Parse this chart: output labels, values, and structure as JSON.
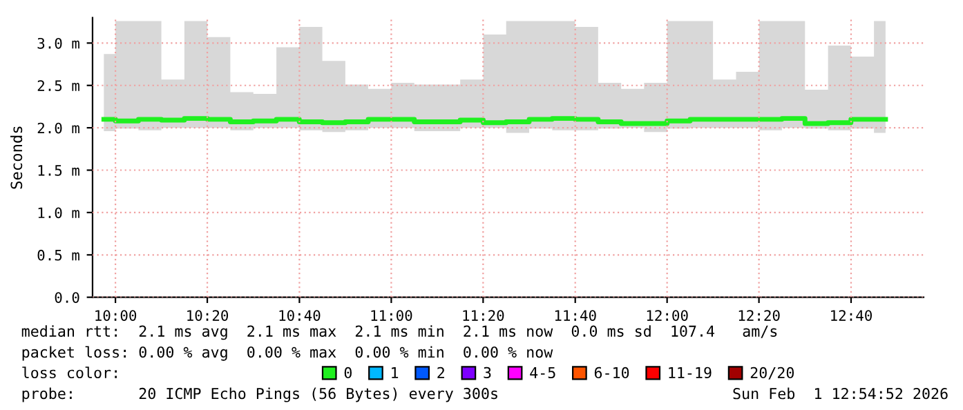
{
  "chart_data": {
    "type": "step",
    "ylabel": "Seconds",
    "x": [
      9.958,
      10.042,
      10.125,
      10.208,
      10.292,
      10.375,
      10.458,
      10.542,
      10.625,
      10.708,
      10.792,
      10.875,
      10.958,
      11.042,
      11.125,
      11.208,
      11.292,
      11.375,
      11.458,
      11.542,
      11.625,
      11.708,
      11.792,
      11.875,
      11.958,
      12.042,
      12.125,
      12.208,
      12.292,
      12.375,
      12.458,
      12.542,
      12.625,
      12.708,
      12.792
    ],
    "series": [
      {
        "name": "0",
        "color": "#20f020",
        "values": [
          2.1,
          2.08,
          2.1,
          2.09,
          2.11,
          2.1,
          2.07,
          2.08,
          2.1,
          2.07,
          2.06,
          2.07,
          2.1,
          2.1,
          2.07,
          2.07,
          2.09,
          2.06,
          2.07,
          2.1,
          2.11,
          2.1,
          2.07,
          2.05,
          2.05,
          2.08,
          2.1,
          2.1,
          2.1,
          2.1,
          2.11,
          2.05,
          2.06,
          2.1,
          2.1
        ],
        "lower": [
          1.96,
          1.99,
          1.97,
          2.0,
          2.0,
          2.0,
          1.97,
          2.0,
          2.0,
          1.97,
          1.95,
          1.97,
          2.0,
          2.0,
          1.96,
          1.96,
          2.0,
          2.0,
          1.94,
          1.99,
          1.97,
          1.97,
          1.99,
          2.0,
          1.95,
          1.99,
          2.0,
          2.0,
          2.0,
          1.97,
          2.0,
          1.99,
          1.97,
          1.99,
          1.94
        ],
        "upper": [
          2.87,
          3.26,
          3.26,
          2.57,
          3.26,
          3.07,
          2.42,
          2.4,
          2.95,
          3.19,
          2.79,
          2.51,
          2.46,
          2.53,
          2.51,
          2.51,
          2.57,
          3.1,
          3.26,
          3.26,
          3.26,
          3.19,
          2.53,
          2.46,
          2.53,
          3.26,
          3.26,
          2.57,
          2.66,
          3.26,
          3.26,
          2.45,
          2.97,
          2.84,
          3.26
        ]
      },
      {
        "name": "1",
        "color": "#00b8ff",
        "values": [
          null,
          null,
          null,
          null,
          null,
          null,
          null,
          null,
          null,
          null,
          null,
          null,
          null,
          null,
          null,
          null,
          null,
          null,
          null,
          null,
          null,
          null,
          null,
          null,
          null,
          null,
          null,
          null,
          null,
          null,
          null,
          null,
          null,
          null,
          null
        ]
      },
      {
        "name": "2",
        "color": "#0059ff",
        "values": [
          null,
          null,
          null,
          null,
          null,
          null,
          null,
          null,
          null,
          null,
          null,
          null,
          null,
          null,
          null,
          null,
          null,
          null,
          null,
          null,
          null,
          null,
          null,
          null,
          null,
          null,
          null,
          null,
          null,
          null,
          null,
          null,
          null,
          null,
          null
        ]
      },
      {
        "name": "3",
        "color": "#7e00ff",
        "values": [
          null,
          null,
          null,
          null,
          null,
          null,
          null,
          null,
          null,
          null,
          null,
          null,
          null,
          null,
          null,
          null,
          null,
          null,
          null,
          null,
          null,
          null,
          null,
          null,
          null,
          null,
          null,
          null,
          null,
          null,
          null,
          null,
          null,
          null,
          null
        ]
      },
      {
        "name": "4-5",
        "color": "#ff00ff",
        "values": [
          null,
          null,
          null,
          null,
          null,
          null,
          null,
          null,
          null,
          null,
          null,
          null,
          null,
          null,
          null,
          null,
          null,
          null,
          null,
          null,
          null,
          null,
          null,
          null,
          null,
          null,
          null,
          null,
          null,
          null,
          null,
          null,
          null,
          null,
          null
        ]
      },
      {
        "name": "6-10",
        "color": "#ff5500",
        "values": [
          null,
          null,
          null,
          null,
          null,
          null,
          null,
          null,
          null,
          null,
          null,
          null,
          null,
          null,
          null,
          null,
          null,
          null,
          null,
          null,
          null,
          null,
          null,
          null,
          null,
          null,
          null,
          null,
          null,
          null,
          null,
          null,
          null,
          null,
          null
        ]
      },
      {
        "name": "11-19",
        "color": "#ff0000",
        "values": [
          null,
          null,
          null,
          null,
          null,
          null,
          null,
          null,
          null,
          null,
          null,
          null,
          null,
          null,
          null,
          null,
          null,
          null,
          null,
          null,
          null,
          null,
          null,
          null,
          null,
          null,
          null,
          null,
          null,
          null,
          null,
          null,
          null,
          null,
          null
        ]
      },
      {
        "name": "20/20",
        "color": "#a10000",
        "values": [
          null,
          null,
          null,
          null,
          null,
          null,
          null,
          null,
          null,
          null,
          null,
          null,
          null,
          null,
          null,
          null,
          null,
          null,
          null,
          null,
          null,
          null,
          null,
          null,
          null,
          null,
          null,
          null,
          null,
          null,
          null,
          null,
          null,
          null,
          null
        ]
      }
    ],
    "xlim": [
      9.917,
      12.93
    ],
    "xticks": [
      {
        "value": 10,
        "label": "10:00"
      },
      {
        "value": 10.333,
        "label": "10:20"
      },
      {
        "value": 10.667,
        "label": "10:40"
      },
      {
        "value": 11,
        "label": "11:00"
      },
      {
        "value": 11.333,
        "label": "11:20"
      },
      {
        "value": 11.667,
        "label": "11:40"
      },
      {
        "value": 12,
        "label": "12:00"
      },
      {
        "value": 12.333,
        "label": "12:20"
      },
      {
        "value": 12.667,
        "label": "12:40"
      }
    ],
    "ylim": [
      0,
      3.3
    ],
    "yticks": [
      {
        "value": 0,
        "label": "0.0"
      },
      {
        "value": 0.5,
        "label": "0.5 m"
      },
      {
        "value": 1.0,
        "label": "1.0 m"
      },
      {
        "value": 1.5,
        "label": "1.5 m"
      },
      {
        "value": 2.0,
        "label": "2.0 m"
      },
      {
        "value": 2.5,
        "label": "2.5 m"
      },
      {
        "value": 3.0,
        "label": "3.0 m"
      }
    ],
    "grid": true,
    "legend": "bottom",
    "legend_title": "loss color:",
    "annotations": [
      "median rtt:  2.1 ms avg  2.1 ms max  2.1 ms min  2.1 ms now  0.0 ms sd  107.4   am/s",
      "packet loss: 0.00 % avg  0.00 % max  0.00 % min  0.00 % now",
      "probe:       20 ICMP Echo Pings (56 Bytes) every 300s",
      "Sun Feb  1 12:54:52 2026"
    ]
  }
}
